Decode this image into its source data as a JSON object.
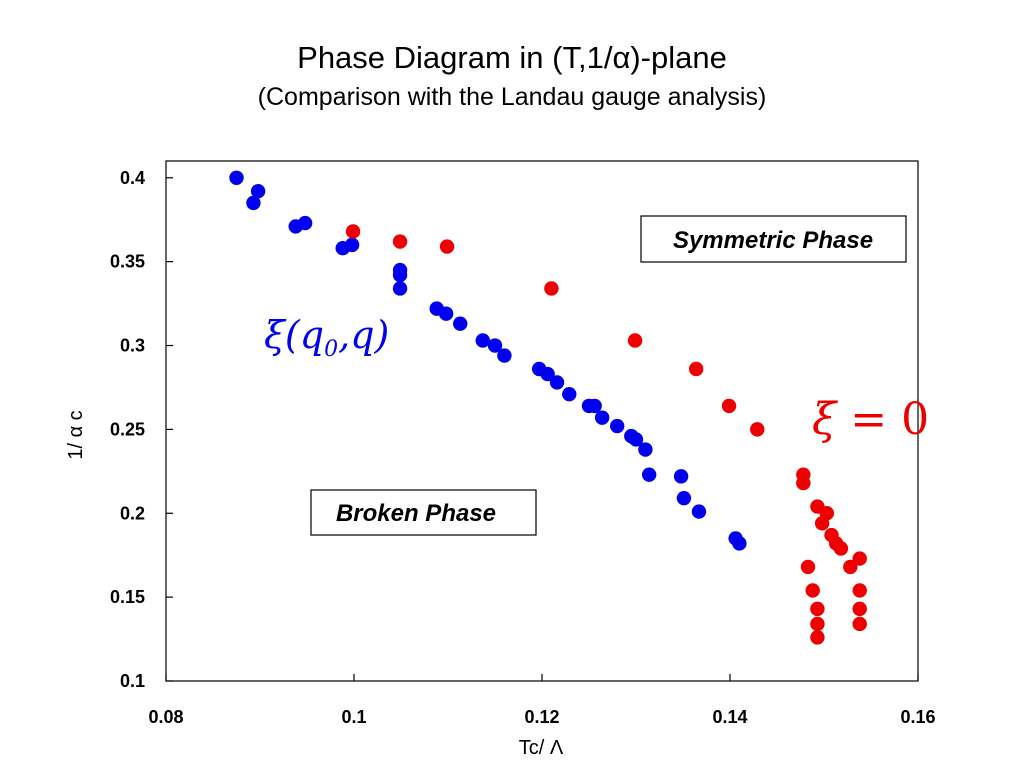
{
  "header": {
    "title": "Phase Diagram in (T,1/α)-plane",
    "subtitle": "(Comparison with the Landau gauge analysis)"
  },
  "chart_data": {
    "type": "scatter",
    "title": "Phase Diagram in (T,1/α)-plane",
    "subtitle": "(Comparison with the Landau gauge analysis)",
    "xlabel": "Tc/ Λ",
    "ylabel": "1/ α c",
    "xlim": [
      0.08,
      0.16
    ],
    "ylim": [
      0.1,
      0.41
    ],
    "xticks": [
      0.08,
      0.1,
      0.12,
      0.14,
      0.16
    ],
    "xtick_labels": [
      "0.08",
      "0.1",
      "0.12",
      "0.14",
      "0.16"
    ],
    "yticks": [
      0.1,
      0.15,
      0.2,
      0.25,
      0.3,
      0.35,
      0.4
    ],
    "ytick_labels": [
      "0.1",
      "0.15",
      "0.2",
      "0.25",
      "0.3",
      "0.35",
      "0.4"
    ],
    "grid": false,
    "region_labels": {
      "symmetric": "Symmetric Phase",
      "broken": "Broken Phase"
    },
    "series": [
      {
        "color": "#0000ee",
        "annotation": "ξ(q0, q)",
        "x": [
          0.0875,
          0.0893,
          0.0898,
          0.0938,
          0.0948,
          0.0988,
          0.0998,
          0.1049,
          0.1049,
          0.1049,
          0.1088,
          0.1098,
          0.1113,
          0.1137,
          0.115,
          0.116,
          0.1197,
          0.1206,
          0.1216,
          0.1229,
          0.125,
          0.1256,
          0.1264,
          0.128,
          0.1295,
          0.13,
          0.131,
          0.1314,
          0.1348,
          0.1351,
          0.1367,
          0.1406,
          0.141
        ],
        "y": [
          0.4,
          0.385,
          0.392,
          0.371,
          0.373,
          0.358,
          0.36,
          0.345,
          0.342,
          0.334,
          0.322,
          0.319,
          0.313,
          0.303,
          0.3,
          0.294,
          0.286,
          0.283,
          0.278,
          0.271,
          0.264,
          0.264,
          0.257,
          0.252,
          0.246,
          0.244,
          0.238,
          0.223,
          0.222,
          0.209,
          0.201,
          0.185,
          0.182
        ]
      },
      {
        "color": "#ee0000",
        "annotation": "ξ = 0",
        "x": [
          0.0999,
          0.1049,
          0.1099,
          0.121,
          0.1299,
          0.1364,
          0.1399,
          0.1429,
          0.1478,
          0.1478,
          0.1483,
          0.1488,
          0.1493,
          0.1493,
          0.1493,
          0.1493,
          0.1498,
          0.1503,
          0.1508,
          0.1513,
          0.1518,
          0.1528,
          0.1538,
          0.1538,
          0.1538,
          0.1538
        ],
        "y": [
          0.368,
          0.362,
          0.359,
          0.334,
          0.303,
          0.286,
          0.264,
          0.25,
          0.223,
          0.218,
          0.168,
          0.154,
          0.143,
          0.134,
          0.126,
          0.204,
          0.194,
          0.2,
          0.187,
          0.182,
          0.179,
          0.168,
          0.173,
          0.154,
          0.143,
          0.134
        ]
      }
    ]
  }
}
